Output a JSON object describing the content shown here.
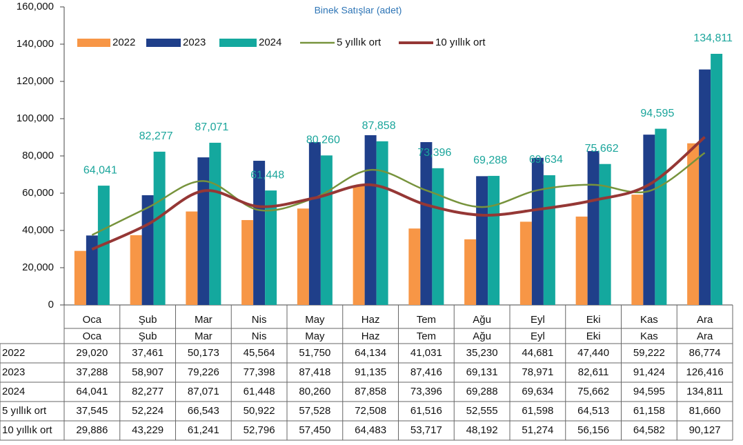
{
  "chart_data": {
    "type": "bar",
    "title": "Binek Satışlar (adet)",
    "categories": [
      "Oca",
      "Şub",
      "Mar",
      "Nis",
      "May",
      "Haz",
      "Tem",
      "Ağu",
      "Eyl",
      "Eki",
      "Kas",
      "Ara"
    ],
    "ylim": [
      0,
      160000
    ],
    "yticks": [
      0,
      {
        "value": 20000,
        "label": "20,000"
      },
      {
        "value": 40000,
        "label": "40,000"
      },
      {
        "value": 60000,
        "label": "60,000"
      },
      {
        "value": 80000,
        "label": "80,000"
      },
      {
        "value": 100000,
        "label": "100,000"
      },
      {
        "value": 120000,
        "label": "120,000"
      },
      {
        "value": 140000,
        "label": "140,000"
      },
      {
        "value": 160000,
        "label": "160,000"
      }
    ],
    "series": [
      {
        "name": "2022",
        "type": "bar",
        "color": "#f79646",
        "values": [
          29020,
          37461,
          50173,
          45564,
          51750,
          64134,
          41031,
          35230,
          44681,
          47440,
          59222,
          86774
        ],
        "value_labels": [
          "29,020",
          "37,461",
          "50,173",
          "45,564",
          "51,750",
          "64,134",
          "41,031",
          "35,230",
          "44,681",
          "47,440",
          "59,222",
          "86,774"
        ]
      },
      {
        "name": "2023",
        "type": "bar",
        "color": "#1f3f8a",
        "values": [
          37288,
          58907,
          79226,
          77398,
          87418,
          91135,
          87416,
          69131,
          78971,
          82611,
          91424,
          126416
        ],
        "value_labels": [
          "37,288",
          "58,907",
          "79,226",
          "77,398",
          "87,418",
          "91,135",
          "87,416",
          "69,131",
          "78,971",
          "82,611",
          "91,424",
          "126,416"
        ]
      },
      {
        "name": "2024",
        "type": "bar",
        "color": "#14a89e",
        "values": [
          64041,
          82277,
          87071,
          61448,
          80260,
          87858,
          73396,
          69288,
          69634,
          75662,
          94595,
          134811
        ],
        "value_labels": [
          "64,041",
          "82,277",
          "87,071",
          "61,448",
          "80,260",
          "87,858",
          "73,396",
          "69,288",
          "69,634",
          "75,662",
          "94,595",
          "134,811"
        ]
      },
      {
        "name": "5 yıllık ort",
        "type": "line",
        "color": "#77933c",
        "values": [
          37545,
          52224,
          66543,
          50922,
          57528,
          72508,
          61516,
          52555,
          61598,
          64513,
          61158,
          81660
        ],
        "value_labels": [
          "37,545",
          "52,224",
          "66,543",
          "50,922",
          "57,528",
          "72,508",
          "61,516",
          "52,555",
          "61,598",
          "64,513",
          "61,158",
          "81,660"
        ]
      },
      {
        "name": "10 yıllık ort",
        "type": "line",
        "color": "#953735",
        "values": [
          29886,
          43229,
          61241,
          52796,
          57450,
          64483,
          53717,
          48192,
          51274,
          56156,
          64582,
          90127
        ],
        "value_labels": [
          "29,886",
          "43,229",
          "61,241",
          "52,796",
          "57,450",
          "64,483",
          "53,717",
          "48,192",
          "51,274",
          "56,156",
          "64,582",
          "90,127"
        ]
      }
    ]
  }
}
